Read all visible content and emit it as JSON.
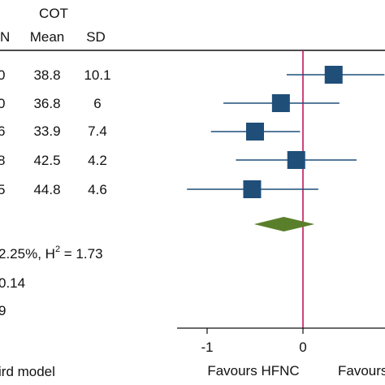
{
  "header": {
    "group_label": "COT",
    "columns": [
      "N",
      "Mean",
      "SD"
    ]
  },
  "rows": [
    {
      "n_fragment": "0",
      "mean": "38.8",
      "sd": "10.1"
    },
    {
      "n_fragment": "0",
      "mean": "36.8",
      "sd": "6"
    },
    {
      "n_fragment": "6",
      "mean": "33.9",
      "sd": "7.4"
    },
    {
      "n_fragment": "8",
      "mean": "42.5",
      "sd": "4.2"
    },
    {
      "n_fragment": "5",
      "mean": "44.8",
      "sd": "4.6"
    }
  ],
  "stats": {
    "heterogeneity_prefix": "2.25%, H",
    "h_superscript": "2",
    "heterogeneity_suffix": " = 1.73",
    "line2": "0.14",
    "line3": "9",
    "footer_model": "ird model"
  },
  "colors": {
    "marker": "#1f4e79",
    "ci_line": "#1f4e79",
    "diamond": "#5a7f2b",
    "null_line": "#c2185b",
    "axis": "#111111"
  },
  "chart_data": {
    "type": "forest",
    "studies": [
      {
        "estimate": 0.32,
        "ci_low": -0.17,
        "ci_high": 0.85
      },
      {
        "estimate": -0.23,
        "ci_low": -0.83,
        "ci_high": 0.38
      },
      {
        "estimate": -0.5,
        "ci_low": -0.96,
        "ci_high": -0.03
      },
      {
        "estimate": -0.07,
        "ci_low": -0.7,
        "ci_high": 0.56
      },
      {
        "estimate": -0.53,
        "ci_low": -1.21,
        "ci_high": 0.16
      }
    ],
    "overall": {
      "estimate": -0.2,
      "ci_low": -0.51,
      "ci_high": 0.12
    },
    "null_value": 0,
    "xlim": [
      -1.25,
      0.8
    ],
    "ticks": [
      -1,
      0
    ],
    "tick_labels": [
      "-1",
      "0"
    ],
    "favours_left": "Favours HFNC",
    "favours_right": "Favours"
  }
}
